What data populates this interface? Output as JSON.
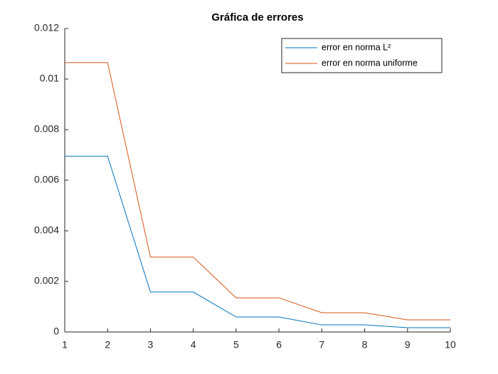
{
  "chart_data": {
    "type": "line",
    "title": "Gráfica de errores",
    "x": [
      1,
      2,
      3,
      4,
      5,
      6,
      7,
      8,
      9,
      10
    ],
    "series": [
      {
        "name": "error en norma L²",
        "color": "#0072bd",
        "values": [
          0.00695,
          0.00695,
          0.00158,
          0.00158,
          0.00059,
          0.00059,
          0.00028,
          0.00028,
          0.00017,
          0.00017
        ]
      },
      {
        "name": "error en norma uniforme",
        "color": "#d95319",
        "values": [
          0.01065,
          0.01065,
          0.00296,
          0.00296,
          0.00135,
          0.00135,
          0.00076,
          0.00076,
          0.00048,
          0.00048
        ]
      }
    ],
    "xlim": [
      1,
      10
    ],
    "xticks": [
      1,
      2,
      3,
      4,
      5,
      6,
      7,
      8,
      9,
      10
    ],
    "ylim": [
      0,
      0.012
    ],
    "yticks": [
      0,
      0.002,
      0.004,
      0.006,
      0.008,
      0.01,
      0.012
    ],
    "legend": "top-right"
  }
}
